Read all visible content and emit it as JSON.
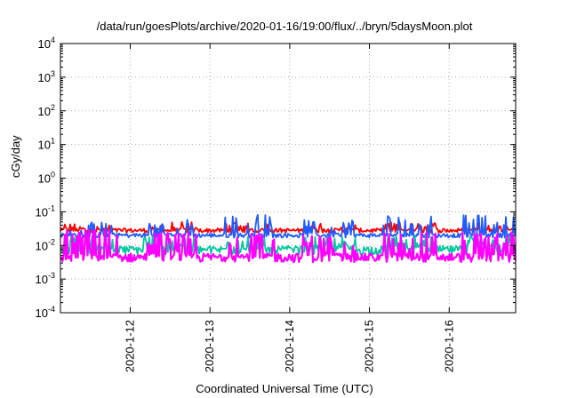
{
  "chart_data": {
    "type": "line",
    "title": "/data/run/goesPlots/archive/2020-01-16/19:00/flux/../bryn/5daysMoon.plot",
    "xlabel": "Coordinated Universal Time (UTC)",
    "ylabel": "cGy/day",
    "yscale": "log",
    "ylim": [
      0.0001,
      10000
    ],
    "y_ticks": [
      {
        "base": "10",
        "exp": "-4",
        "value": 0.0001
      },
      {
        "base": "10",
        "exp": "-3",
        "value": 0.001
      },
      {
        "base": "10",
        "exp": "-2",
        "value": 0.01
      },
      {
        "base": "10",
        "exp": "-1",
        "value": 0.1
      },
      {
        "base": "10",
        "exp": "0",
        "value": 1
      },
      {
        "base": "10",
        "exp": "1",
        "value": 10
      },
      {
        "base": "10",
        "exp": "2",
        "value": 100
      },
      {
        "base": "10",
        "exp": "3",
        "value": 1000
      },
      {
        "base": "10",
        "exp": "4",
        "value": 10000
      }
    ],
    "xlim": [
      "2020-01-11 03:00",
      "2020-01-16 20:00"
    ],
    "x_ticks": [
      "2020-1-12",
      "2020-1-13",
      "2020-1-14",
      "2020-1-15",
      "2020-1-16"
    ],
    "grid": true,
    "series": [
      {
        "color": "#ff0000",
        "baseline": 0.028,
        "spikes": [
          0.045,
          0.05,
          0.05,
          0.048,
          0.05
        ]
      },
      {
        "color": "#1e5bff",
        "baseline": 0.02,
        "spikes": [
          0.05,
          0.06,
          0.085,
          0.06,
          0.08
        ]
      },
      {
        "color": "#00c8a0",
        "baseline": 0.0075,
        "spikes": [
          0.025,
          0.02,
          0.02,
          0.018,
          0.02
        ]
      },
      {
        "color": "#ff00ff",
        "baseline": 0.0045,
        "spikes": [
          0.03,
          0.025,
          0.022,
          0.02,
          0.025
        ]
      }
    ]
  }
}
